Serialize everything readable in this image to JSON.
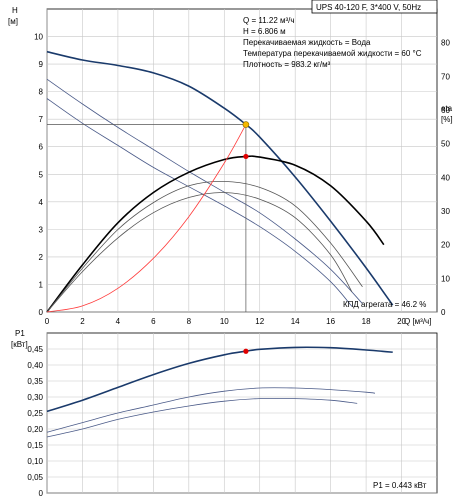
{
  "top_chart": {
    "title": "UPS 40-120 F, 3*400 V, 50Hz",
    "y_label": "H",
    "y_unit": "[м]",
    "y2_label": "eta",
    "y2_unit": "[%]",
    "x_label": "Q [м³/ч]",
    "info_lines": [
      "Q = 11.22 м³/ч",
      "H = 6.806 м",
      "Перекачиваемая жидкость = Вода",
      "Температура перекачиваемой жидкости = 60 °C",
      "Плотность = 983.2 кг/м³"
    ],
    "efficiency_note": "КПД агрегата = 46.2 %"
  },
  "bottom_chart": {
    "y_label": "P1",
    "y_unit": "[кВт]",
    "power_note": "P1 = 0.443 кВт"
  },
  "chart_data": [
    {
      "type": "line",
      "xlim": [
        0,
        22
      ],
      "ylim": [
        0,
        11
      ],
      "y2lim": [
        0,
        90
      ],
      "x_ticks": [
        0,
        2,
        4,
        6,
        8,
        10,
        12,
        14,
        16,
        18,
        20
      ],
      "y_ticks": [
        0,
        1,
        2,
        3,
        4,
        5,
        6,
        7,
        8,
        9,
        10
      ],
      "y2_ticks": [
        0,
        10,
        20,
        30,
        40,
        50,
        60,
        70,
        80
      ],
      "grid": true,
      "colors": {
        "head_main": "#1a3a6b",
        "head_secondary": "#4a5a88",
        "efficiency_main": "#000000",
        "efficiency_secondary": "#555555",
        "system": "#ff3b3b",
        "duty_marker": "#f5b800",
        "eff_marker": "#e00000",
        "guide": "#555555"
      },
      "series": [
        {
          "axis": "H",
          "x": [
            0,
            2,
            4,
            6,
            8,
            10,
            11.22,
            12,
            14,
            16,
            18,
            19.5
          ],
          "y": [
            9.45,
            9.15,
            8.95,
            8.68,
            8.2,
            7.4,
            6.806,
            6.35,
            4.9,
            3.3,
            1.6,
            0.25
          ]
        },
        {
          "axis": "H",
          "x": [
            0,
            2,
            4,
            6,
            8,
            10,
            12,
            14,
            16,
            17.8
          ],
          "y": [
            8.45,
            7.55,
            6.7,
            5.9,
            5.1,
            4.35,
            3.6,
            2.65,
            1.55,
            0.3
          ]
        },
        {
          "axis": "H",
          "x": [
            0,
            2,
            4,
            6,
            8,
            10,
            12,
            14,
            16,
            17.2
          ],
          "y": [
            7.75,
            6.85,
            6.05,
            5.25,
            4.55,
            3.85,
            3.1,
            2.2,
            1.1,
            0.2
          ]
        },
        {
          "axis": "eta",
          "x": [
            0,
            2,
            4,
            6,
            8,
            10,
            11.22,
            12,
            14,
            16,
            18,
            19
          ],
          "y": [
            0,
            14,
            26.5,
            35.5,
            41.5,
            45.3,
            46.2,
            46.0,
            43.6,
            37.5,
            27,
            20
          ]
        },
        {
          "axis": "eta",
          "x": [
            0,
            2,
            4,
            6,
            8,
            10,
            12,
            14,
            16,
            17.8
          ],
          "y": [
            0,
            13,
            24.5,
            32.5,
            37.5,
            38.8,
            37.0,
            31.5,
            20.5,
            7.5
          ]
        },
        {
          "axis": "eta",
          "x": [
            0,
            2,
            4,
            6,
            8,
            10,
            12,
            14,
            16,
            17.2
          ],
          "y": [
            0,
            12,
            22,
            29.5,
            34.0,
            35.5,
            33.5,
            28.0,
            17,
            6
          ]
        },
        {
          "axis": "H",
          "x": [
            0,
            2,
            4,
            6,
            8,
            10,
            11.22
          ],
          "y": [
            0,
            0.22,
            0.86,
            1.95,
            3.46,
            5.41,
            6.806
          ]
        }
      ],
      "duty_point": {
        "Q": 11.22,
        "H": 6.806,
        "eta": 46.2
      }
    },
    {
      "type": "line",
      "xlim": [
        0,
        22
      ],
      "ylim": [
        0,
        0.5
      ],
      "y_ticks": [
        0,
        0.05,
        0.1,
        0.15,
        0.2,
        0.25,
        0.3,
        0.35,
        0.4,
        0.45
      ],
      "y_tick_labels": [
        "0",
        "0,05",
        "0,10",
        "0,15",
        "0,20",
        "0,25",
        "0,30",
        "0,35",
        "0,40",
        "0,45"
      ],
      "grid": true,
      "colors": {
        "p1_main": "#1a3a6b",
        "p1_secondary": "#4a5a88",
        "marker": "#e00000"
      },
      "series": [
        {
          "x": [
            0,
            2,
            4,
            6,
            8,
            10,
            11.22,
            12,
            14,
            16,
            18,
            19.5
          ],
          "y": [
            0.255,
            0.29,
            0.33,
            0.37,
            0.405,
            0.432,
            0.443,
            0.449,
            0.455,
            0.454,
            0.447,
            0.44
          ]
        },
        {
          "x": [
            0,
            2,
            4,
            6,
            8,
            10,
            12,
            14,
            16,
            18,
            18.5
          ],
          "y": [
            0.19,
            0.22,
            0.25,
            0.275,
            0.3,
            0.318,
            0.328,
            0.328,
            0.323,
            0.315,
            0.312
          ]
        },
        {
          "x": [
            0,
            2,
            4,
            6,
            8,
            10,
            12,
            14,
            16,
            17.5
          ],
          "y": [
            0.175,
            0.2,
            0.23,
            0.253,
            0.272,
            0.287,
            0.295,
            0.295,
            0.29,
            0.28
          ]
        }
      ],
      "duty_point": {
        "Q": 11.22,
        "P1": 0.443
      }
    }
  ]
}
